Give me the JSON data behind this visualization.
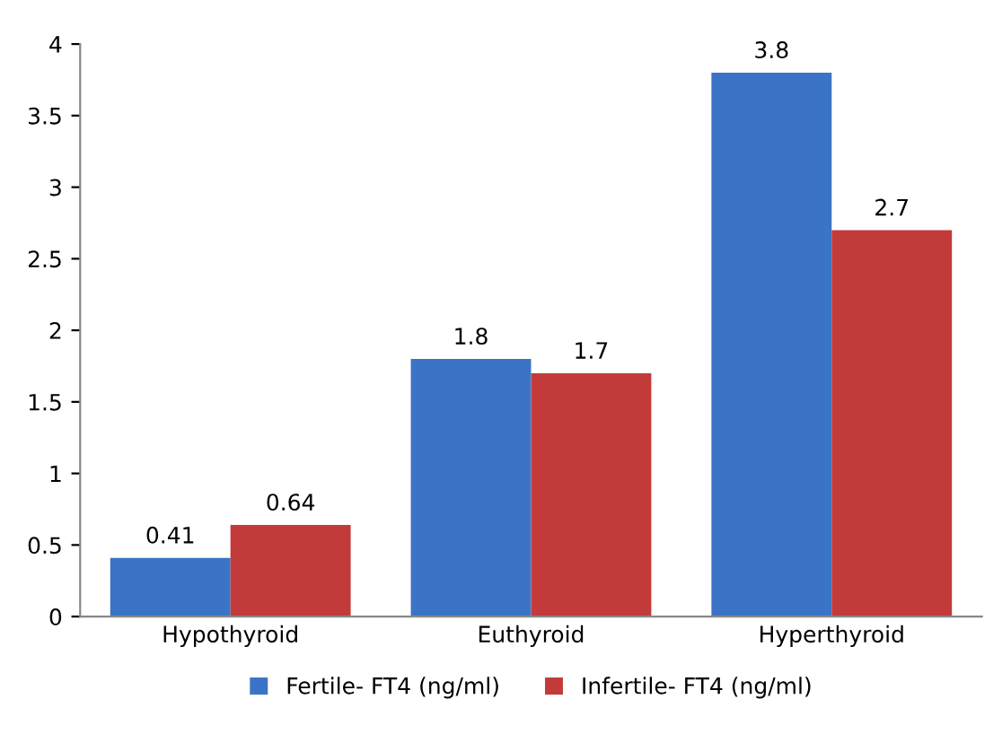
{
  "chart_data": {
    "type": "bar",
    "categories": [
      "Hypothyroid",
      "Euthyroid",
      "Hyperthyroid"
    ],
    "series": [
      {
        "name": "Fertile- FT4 (ng/ml)",
        "color": "#3b74c6",
        "values": [
          0.41,
          1.8,
          3.8
        ]
      },
      {
        "name": "Infertile- FT4 (ng/ml)",
        "color": "#c23b3a",
        "values": [
          0.64,
          1.7,
          2.7
        ]
      }
    ],
    "ylim": [
      0,
      4
    ],
    "yticks": [
      0,
      0.5,
      1,
      1.5,
      2,
      2.5,
      3,
      3.5,
      4
    ],
    "data_labels": true,
    "legend": "bottom",
    "grid": false
  }
}
